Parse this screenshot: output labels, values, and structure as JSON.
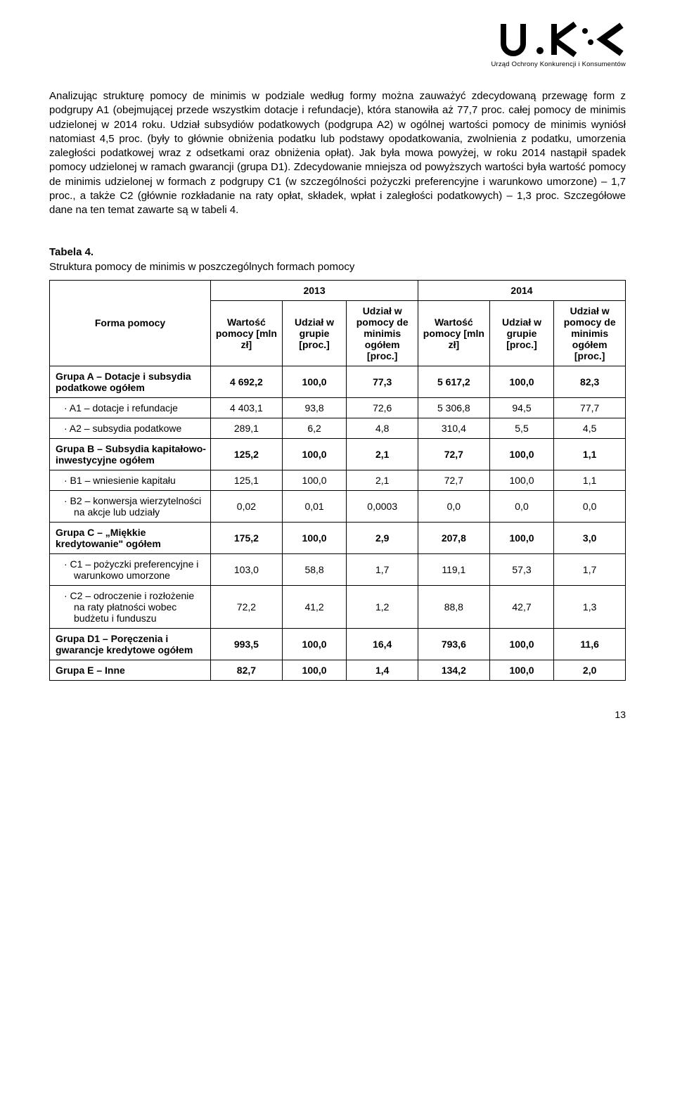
{
  "logo": {
    "subtitle": "Urząd Ochrony Konkurencji i Konsumentów"
  },
  "paragraph": "Analizując strukturę pomocy de minimis w podziale według formy można zauważyć zdecydowaną przewagę form z podgrupy A1 (obejmującej przede wszystkim dotacje i refundacje), która stanowiła aż 77,7 proc. całej pomocy de minimis udzielonej w 2014 roku. Udział subsydiów podatkowych (podgrupa A2) w ogólnej wartości pomocy de minimis wyniósł natomiast 4,5 proc. (były to głównie obniżenia podatku lub podstawy opodatkowania, zwolnienia z podatku, umorzenia zaległości podatkowej wraz z odsetkami oraz obniżenia opłat). Jak była mowa powyżej, w roku 2014 nastąpił spadek pomocy udzielonej w ramach gwarancji (grupa D1). Zdecydowanie mniejsza od powyższych wartości była wartość pomocy de minimis udzielonej w formach z podgrupy C1 (w szczególności pożyczki preferencyjne i warunkowo umorzone) – 1,7 proc., a także C2 (głównie rozkładanie na raty opłat, składek, wpłat i zaległości podatkowych) – 1,3 proc. Szczegółowe dane na ten temat zawarte są w tabeli 4.",
  "table": {
    "title_bold": "Tabela 4.",
    "title_rest": "Struktura pomocy de minimis w poszczególnych formach pomocy",
    "years": [
      "2013",
      "2014"
    ],
    "row_header": "Forma pomocy",
    "col_headers": [
      "Wartość pomocy [mln zł]",
      "Udział w grupie [proc.]",
      "Udział w pomocy de minimis ogółem [proc.]",
      "Wartość pomocy [mln zł]",
      "Udział w grupie [proc.]",
      "Udział w pomocy de minimis ogółem [proc.]"
    ],
    "rows": [
      {
        "label": "Grupa A – Dotacje i subsydia podatkowe ogółem",
        "bold": true,
        "sub": false,
        "v": [
          "4 692,2",
          "100,0",
          "77,3",
          "5 617,2",
          "100,0",
          "82,3"
        ]
      },
      {
        "label": "· A1 – dotacje i refundacje",
        "bold": false,
        "sub": true,
        "v": [
          "4 403,1",
          "93,8",
          "72,6",
          "5 306,8",
          "94,5",
          "77,7"
        ]
      },
      {
        "label": "· A2 – subsydia podatkowe",
        "bold": false,
        "sub": true,
        "v": [
          "289,1",
          "6,2",
          "4,8",
          "310,4",
          "5,5",
          "4,5"
        ]
      },
      {
        "label": "Grupa B – Subsydia kapitałowo-inwestycyjne ogółem",
        "bold": true,
        "sub": false,
        "v": [
          "125,2",
          "100,0",
          "2,1",
          "72,7",
          "100,0",
          "1,1"
        ]
      },
      {
        "label": "· B1 – wniesienie kapitału",
        "bold": false,
        "sub": true,
        "v": [
          "125,1",
          "100,0",
          "2,1",
          "72,7",
          "100,0",
          "1,1"
        ]
      },
      {
        "label": "· B2 – konwersja wierzytelności na akcje lub udziały",
        "bold": false,
        "sub": true,
        "v": [
          "0,02",
          "0,01",
          "0,0003",
          "0,0",
          "0,0",
          "0,0"
        ]
      },
      {
        "label": "Grupa C – „Miękkie kredytowanie\" ogółem",
        "bold": true,
        "sub": false,
        "v": [
          "175,2",
          "100,0",
          "2,9",
          "207,8",
          "100,0",
          "3,0"
        ]
      },
      {
        "label": "· C1 – pożyczki preferencyjne i warunkowo umorzone",
        "bold": false,
        "sub": true,
        "v": [
          "103,0",
          "58,8",
          "1,7",
          "119,1",
          "57,3",
          "1,7"
        ]
      },
      {
        "label": "· C2 – odroczenie i rozłożenie na raty płatności wobec budżetu i funduszu",
        "bold": false,
        "sub": true,
        "v": [
          "72,2",
          "41,2",
          "1,2",
          "88,8",
          "42,7",
          "1,3"
        ]
      },
      {
        "label": "Grupa D1 – Poręczenia i gwarancje kredytowe ogółem",
        "bold": true,
        "sub": false,
        "v": [
          "993,5",
          "100,0",
          "16,4",
          "793,6",
          "100,0",
          "11,6"
        ]
      },
      {
        "label": "Grupa E – Inne",
        "bold": true,
        "sub": false,
        "v": [
          "82,7",
          "100,0",
          "1,4",
          "134,2",
          "100,0",
          "2,0"
        ]
      }
    ]
  },
  "page_number": "13"
}
